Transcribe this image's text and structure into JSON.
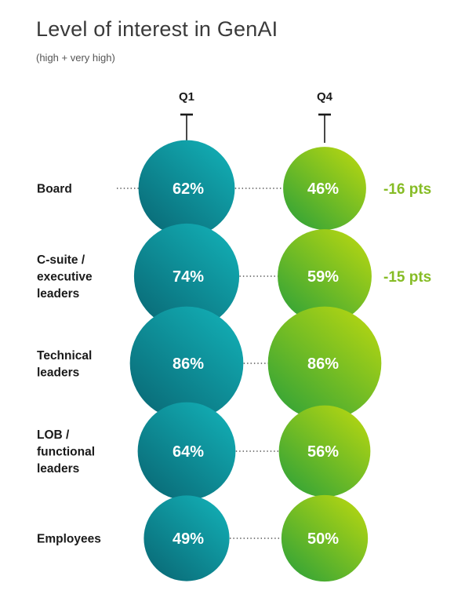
{
  "chart_data": {
    "type": "bubble",
    "title": "Level of interest in GenAI",
    "subtitle": "(high + very high)",
    "columns": [
      "Q1",
      "Q4"
    ],
    "rows": [
      {
        "label": "Board",
        "values": [
          62,
          46
        ],
        "value_labels": [
          "62%",
          "46%"
        ],
        "change": "-16 pts"
      },
      {
        "label": "C-suite / executive leaders",
        "values": [
          74,
          59
        ],
        "value_labels": [
          "74%",
          "59%"
        ],
        "change": "-15 pts"
      },
      {
        "label": "Technical leaders",
        "values": [
          86,
          86
        ],
        "value_labels": [
          "86%",
          "86%"
        ],
        "change": ""
      },
      {
        "label": "LOB / functional leaders",
        "values": [
          64,
          56
        ],
        "value_labels": [
          "64%",
          "56%"
        ],
        "change": ""
      },
      {
        "label": "Employees",
        "values": [
          49,
          50
        ],
        "value_labels": [
          "49%",
          "50%"
        ],
        "change": ""
      }
    ],
    "colors": {
      "q1_light": "#10a9b0",
      "q1_dark": "#0a6f7b",
      "q4_light": "#a9d113",
      "q4_dark": "#3ea834",
      "change_text": "#86bc25"
    }
  }
}
